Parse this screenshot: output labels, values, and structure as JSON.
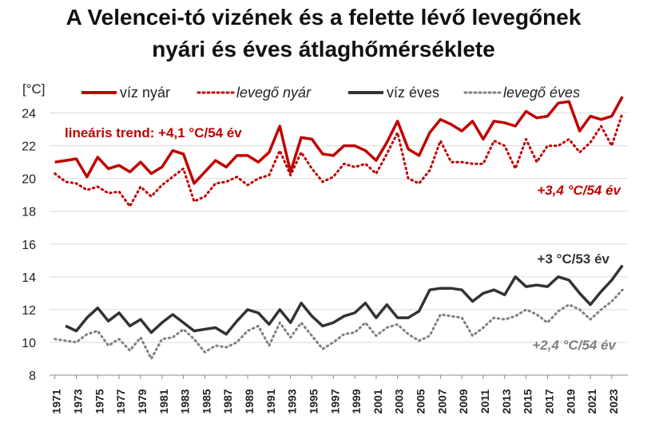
{
  "chart_data": {
    "type": "line",
    "title": "A Velencei-tó vizének és a felette lévő levegőnek",
    "subtitle": "nyári és éves átlaghőmérséklete",
    "ylabel": "[°C]",
    "ylim": [
      8,
      25
    ],
    "yticks": [
      8,
      10,
      12,
      14,
      16,
      18,
      20,
      22,
      24
    ],
    "xticks": [
      "1971",
      "1973",
      "1975",
      "1977",
      "1979",
      "1981",
      "1983",
      "1985",
      "1987",
      "1989",
      "1991",
      "1993",
      "1995",
      "1997",
      "1999",
      "2001",
      "2003",
      "2005",
      "2007",
      "2009",
      "2011",
      "2013",
      "2015",
      "2017",
      "2019",
      "2021",
      "2023"
    ],
    "grid": true,
    "legend_position": "top",
    "colors": {
      "red": "#c00000",
      "dark": "#333333",
      "gray": "#7f7f7f"
    },
    "series": [
      {
        "name": "víz nyár",
        "style": "solid",
        "color": "#c00000",
        "x": [
          1971,
          1972,
          1973,
          1974,
          1975,
          1976,
          1977,
          1978,
          1979,
          1980,
          1981,
          1982,
          1983,
          1984,
          1985,
          1986,
          1987,
          1988,
          1989,
          1990,
          1991,
          1992,
          1993,
          1994,
          1995,
          1996,
          1997,
          1998,
          1999,
          2000,
          2001,
          2002,
          2003,
          2004,
          2005,
          2006,
          2007,
          2008,
          2009,
          2010,
          2011,
          2012,
          2013,
          2014,
          2015,
          2016,
          2017,
          2018,
          2019,
          2020,
          2021,
          2022,
          2023,
          2024
        ],
        "values": [
          21.0,
          21.1,
          21.2,
          20.1,
          21.3,
          20.6,
          20.8,
          20.4,
          21.0,
          20.3,
          20.7,
          21.7,
          21.5,
          19.7,
          20.4,
          21.1,
          20.7,
          21.4,
          21.4,
          21.0,
          21.6,
          23.2,
          20.4,
          22.5,
          22.4,
          21.5,
          21.4,
          22.0,
          22.0,
          21.7,
          21.1,
          22.2,
          23.5,
          21.8,
          21.4,
          22.8,
          23.6,
          23.3,
          22.9,
          23.5,
          22.4,
          23.5,
          23.4,
          23.2,
          24.1,
          23.7,
          23.8,
          24.6,
          24.7,
          22.9,
          23.8,
          23.6,
          23.8,
          25.0
        ]
      },
      {
        "name": "levegő nyár",
        "style": "dotted",
        "color": "#c00000",
        "x": [
          1971,
          1972,
          1973,
          1974,
          1975,
          1976,
          1977,
          1978,
          1979,
          1980,
          1981,
          1982,
          1983,
          1984,
          1985,
          1986,
          1987,
          1988,
          1989,
          1990,
          1991,
          1992,
          1993,
          1994,
          1995,
          1996,
          1997,
          1998,
          1999,
          2000,
          2001,
          2002,
          2003,
          2004,
          2005,
          2006,
          2007,
          2008,
          2009,
          2010,
          2011,
          2012,
          2013,
          2014,
          2015,
          2016,
          2017,
          2018,
          2019,
          2020,
          2021,
          2022,
          2023,
          2024
        ],
        "values": [
          20.3,
          19.8,
          19.7,
          19.3,
          19.5,
          19.1,
          19.2,
          18.3,
          19.5,
          18.9,
          19.6,
          20.1,
          20.6,
          18.6,
          18.9,
          19.7,
          19.8,
          20.1,
          19.6,
          20.0,
          20.2,
          21.7,
          20.2,
          21.6,
          20.6,
          19.8,
          20.1,
          20.9,
          20.7,
          20.9,
          20.3,
          21.5,
          22.8,
          20.0,
          19.7,
          20.5,
          22.3,
          21.0,
          21.0,
          20.9,
          20.9,
          22.3,
          22.0,
          20.6,
          22.4,
          21.0,
          22.0,
          22.0,
          22.4,
          21.6,
          22.2,
          23.2,
          22.0,
          24.0
        ]
      },
      {
        "name": "víz éves",
        "style": "solid",
        "color": "#333333",
        "x": [
          1972,
          1973,
          1974,
          1975,
          1976,
          1977,
          1978,
          1979,
          1980,
          1981,
          1982,
          1983,
          1984,
          1985,
          1986,
          1987,
          1988,
          1989,
          1990,
          1991,
          1992,
          1993,
          1994,
          1995,
          1996,
          1997,
          1998,
          1999,
          2000,
          2001,
          2002,
          2003,
          2004,
          2005,
          2006,
          2007,
          2008,
          2009,
          2010,
          2011,
          2012,
          2013,
          2014,
          2015,
          2016,
          2017,
          2018,
          2019,
          2020,
          2021,
          2022,
          2023,
          2024
        ],
        "values": [
          11.0,
          10.7,
          11.5,
          12.1,
          11.3,
          11.8,
          11.0,
          11.4,
          10.6,
          11.2,
          11.7,
          11.2,
          10.7,
          10.8,
          10.9,
          10.5,
          11.3,
          12.0,
          11.8,
          11.1,
          12.0,
          11.2,
          12.4,
          11.6,
          11.0,
          11.2,
          11.6,
          11.8,
          12.4,
          11.5,
          12.3,
          11.5,
          11.5,
          11.9,
          13.2,
          13.3,
          13.3,
          13.2,
          12.5,
          13.0,
          13.2,
          12.9,
          14.0,
          13.4,
          13.5,
          13.4,
          14.0,
          13.8,
          13.0,
          12.3,
          13.1,
          13.8,
          14.7
        ]
      },
      {
        "name": "levegő éves",
        "style": "dotted",
        "color": "#7f7f7f",
        "x": [
          1971,
          1972,
          1973,
          1974,
          1975,
          1976,
          1977,
          1978,
          1979,
          1980,
          1981,
          1982,
          1983,
          1984,
          1985,
          1986,
          1987,
          1988,
          1989,
          1990,
          1991,
          1992,
          1993,
          1994,
          1995,
          1996,
          1997,
          1998,
          1999,
          2000,
          2001,
          2002,
          2003,
          2004,
          2005,
          2006,
          2007,
          2008,
          2009,
          2010,
          2011,
          2012,
          2013,
          2014,
          2015,
          2016,
          2017,
          2018,
          2019,
          2020,
          2021,
          2022,
          2023,
          2024
        ],
        "values": [
          10.2,
          10.1,
          10.0,
          10.5,
          10.7,
          9.8,
          10.2,
          9.5,
          10.3,
          9.0,
          10.2,
          10.3,
          10.8,
          10.2,
          9.4,
          9.8,
          9.7,
          10.0,
          10.7,
          11.0,
          9.8,
          11.2,
          10.3,
          11.2,
          10.4,
          9.6,
          10.0,
          10.5,
          10.6,
          11.2,
          10.4,
          10.9,
          11.1,
          10.5,
          10.1,
          10.4,
          11.7,
          11.6,
          11.5,
          10.4,
          10.9,
          11.5,
          11.4,
          11.6,
          12.0,
          11.7,
          11.2,
          11.9,
          12.3,
          12.0,
          11.4,
          12.0,
          12.5,
          13.2
        ]
      }
    ],
    "annotations": [
      {
        "text": "lineáris trend: +4,1 °C/54 év",
        "color": "#c00000",
        "italic": false
      },
      {
        "text": "+3,4 °C/54 év",
        "color": "#c00000",
        "italic": true
      },
      {
        "text": "+3 °C/53 év",
        "color": "#333333",
        "italic": false
      },
      {
        "text": "+2,4 °C/54 év",
        "color": "#7f7f7f",
        "italic": true
      }
    ]
  }
}
